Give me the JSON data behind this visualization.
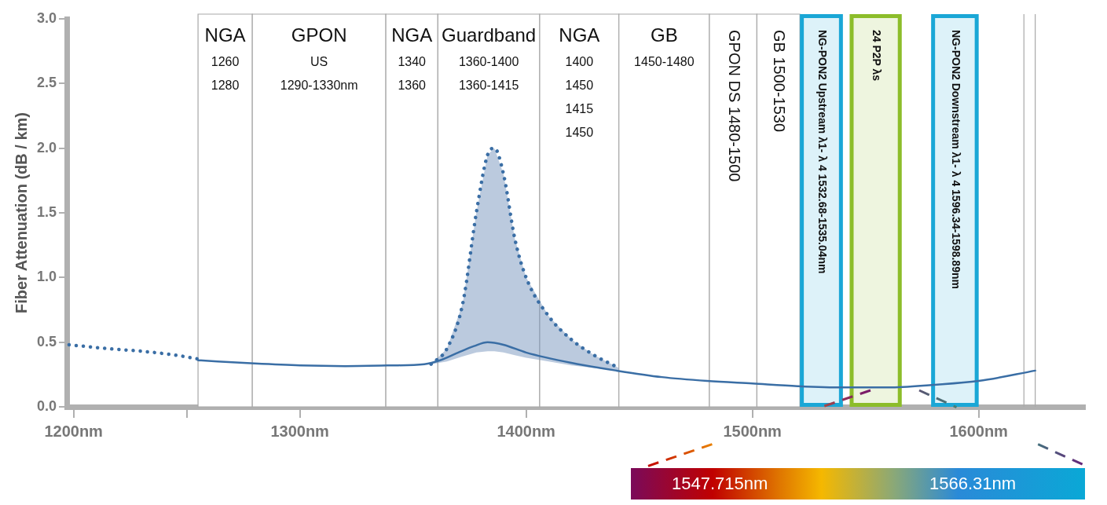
{
  "chart_data": {
    "type": "line",
    "ylabel": "Fiber Attenuation (dB / km)",
    "xlim": [
      1197,
      1647
    ],
    "xticks": [
      {
        "value": 1200,
        "label": "1200nm"
      },
      {
        "value": 1250,
        "label": null
      },
      {
        "value": 1300,
        "label": "1300nm"
      },
      {
        "value": 1400,
        "label": "1400nm"
      },
      {
        "value": 1500,
        "label": "1500nm"
      },
      {
        "value": 1600,
        "label": "1600nm"
      }
    ],
    "ylim": [
      0,
      3
    ],
    "yticks": [
      {
        "value": 0,
        "label": "0.0"
      },
      {
        "value": 0.5,
        "label": "0.5"
      },
      {
        "value": 1,
        "label": "1.0"
      },
      {
        "value": 1.5,
        "label": "1.5"
      },
      {
        "value": 2,
        "label": "2.0"
      },
      {
        "value": 2.5,
        "label": "2.5"
      },
      {
        "value": 3,
        "label": "3.0"
      }
    ],
    "series": [
      {
        "color": "#3a6ea5",
        "line_style": "dotted",
        "x": [
          1198,
          1215,
          1230,
          1245,
          1255
        ],
        "values": [
          0.48,
          0.45,
          0.43,
          0.4,
          0.37
        ]
      },
      {
        "color": "#3a6ea5",
        "line_style": "solid",
        "x": [
          1255,
          1280,
          1300,
          1320,
          1340,
          1355,
          1362,
          1370,
          1377,
          1383,
          1390,
          1400,
          1420,
          1440,
          1460,
          1480,
          1500,
          1520,
          1540,
          1560,
          1580,
          1600,
          1625
        ],
        "values": [
          0.36,
          0.335,
          0.32,
          0.315,
          0.32,
          0.33,
          0.36,
          0.42,
          0.47,
          0.5,
          0.48,
          0.42,
          0.34,
          0.28,
          0.23,
          0.2,
          0.18,
          0.16,
          0.15,
          0.15,
          0.17,
          0.2,
          0.28
        ]
      },
      {
        "color": "#3a6ea5",
        "line_style": "dotted",
        "x": [
          1358,
          1365,
          1372,
          1378,
          1383,
          1386,
          1390,
          1395,
          1400,
          1410,
          1420,
          1430,
          1441
        ],
        "values": [
          0.33,
          0.45,
          0.8,
          1.5,
          1.95,
          2.0,
          1.8,
          1.3,
          1.0,
          0.7,
          0.52,
          0.4,
          0.3
        ],
        "lower": [
          0.33,
          0.35,
          0.39,
          0.42,
          0.43,
          0.43,
          0.42,
          0.4,
          0.38,
          0.35,
          0.32,
          0.3,
          0.28
        ],
        "upper": [
          0.33,
          0.45,
          0.8,
          1.5,
          1.95,
          2.0,
          1.8,
          1.3,
          1.0,
          0.7,
          0.52,
          0.4,
          0.3
        ]
      }
    ],
    "bands": [
      {
        "axis": "x",
        "from": 1255,
        "to": 1279,
        "label": "NGA\n1260\n1280"
      },
      {
        "axis": "x",
        "from": 1279,
        "to": 1338,
        "label": "GPON\nUS\n1290-1330nm"
      },
      {
        "axis": "x",
        "from": 1338,
        "to": 1361,
        "label": "NGA\n1340\n1360"
      },
      {
        "axis": "x",
        "from": 1361,
        "to": 1406,
        "label": "Guardband\n1360-1400\n1360-1415"
      },
      {
        "axis": "x",
        "from": 1406,
        "to": 1441,
        "label": "NGA\n1400\n1450\n1415\n1450"
      },
      {
        "axis": "x",
        "from": 1441,
        "to": 1481,
        "label": "GB\n1450-1480"
      },
      {
        "axis": "x",
        "from": 1481,
        "to": 1502,
        "label": "GPON DS 1480-1500"
      },
      {
        "axis": "x",
        "from": 1502,
        "to": 1521,
        "label": "GB 1500-1530"
      },
      {
        "axis": "x",
        "from": 1521,
        "to": 1540,
        "label": "NG-PON2 Upstream λ1- λ 4 1532.68-1535.04nm",
        "color": "#1aa7d6"
      },
      {
        "axis": "x",
        "from": 1543,
        "to": 1566,
        "label": "24 P2P λs",
        "color": "#8cbd2a"
      },
      {
        "axis": "x",
        "from": 1579,
        "to": 1600,
        "label": "NG-PON2 Downstream λ1- λ 4 1596.34-1598.89nm",
        "color": "#1aa7d6"
      }
    ],
    "ref_lines": [
      {
        "axis": "x",
        "value": 1620
      },
      {
        "axis": "x",
        "value": 1625
      }
    ],
    "annotations": [
      "1547.715nm",
      "1566.31nm"
    ]
  }
}
